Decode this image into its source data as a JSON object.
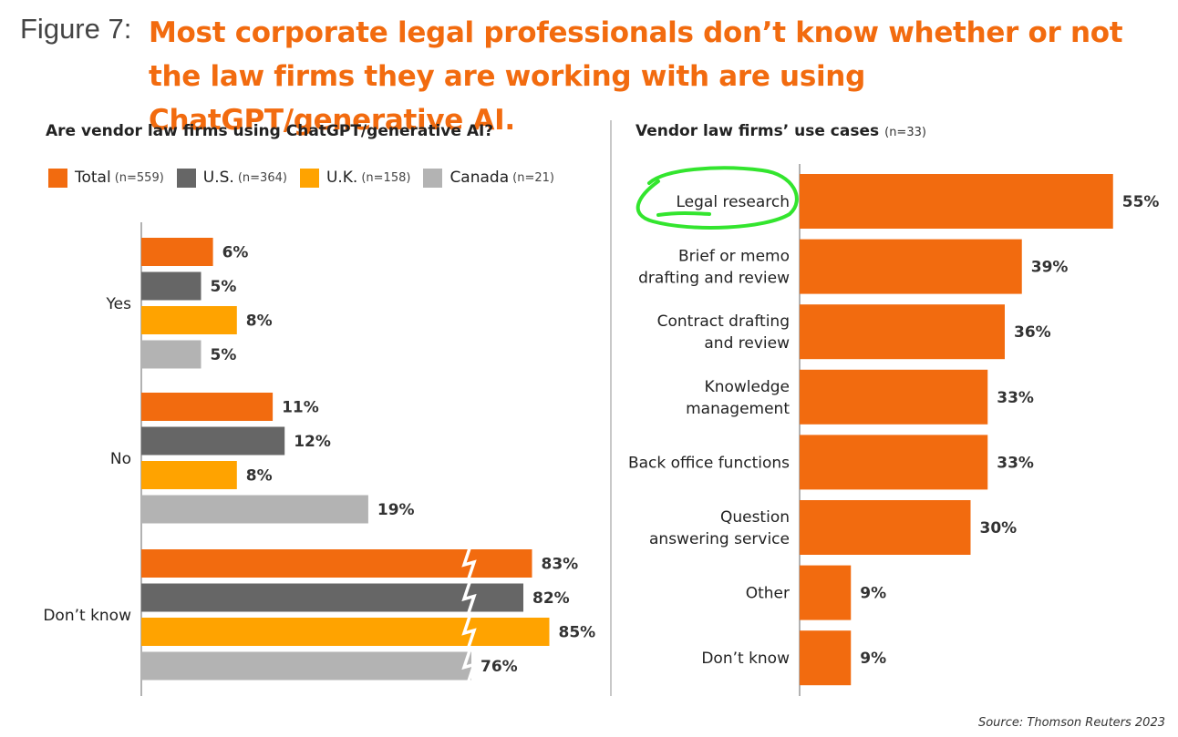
{
  "figure_label": "Figure 7:",
  "figure_title": "Most corporate legal professionals don’t know whether or not the law firms they are working with are using ChatGPT/generative AI.",
  "source": "Source: Thomson Reuters 2023",
  "colors": {
    "total": "#f26b0f",
    "us": "#666666",
    "uk": "#ffa300",
    "canada": "#b3b3b3",
    "highlight": "#33e52e"
  },
  "chart_data": [
    {
      "type": "bar",
      "orientation": "horizontal",
      "title": "Are vendor law firms using ChatGPT/generative AI?",
      "categories": [
        "Yes",
        "No",
        "Don’t know"
      ],
      "series": [
        {
          "name": "Total",
          "n": "(n=559)",
          "values": [
            6,
            11,
            83
          ],
          "labels": [
            "6%",
            "11%",
            "83%"
          ],
          "color": "#f26b0f"
        },
        {
          "name": "U.S.",
          "n": "(n=364)",
          "values": [
            5,
            12,
            82
          ],
          "labels": [
            "5%",
            "12%",
            "82%"
          ],
          "color": "#666666"
        },
        {
          "name": "U.K.",
          "n": "(n=158)",
          "values": [
            8,
            8,
            85
          ],
          "labels": [
            "8%",
            "8%",
            "85%"
          ],
          "color": "#ffa300"
        },
        {
          "name": "Canada",
          "n": "(n=21)",
          "values": [
            5,
            19,
            76
          ],
          "labels": [
            "5%",
            "19%",
            "76%"
          ],
          "color": "#b3b3b3"
        }
      ],
      "axis_break": true,
      "legend_position": "top"
    },
    {
      "type": "bar",
      "orientation": "horizontal",
      "title": "Vendor law firms’ use cases",
      "note": "(n=33)",
      "categories": [
        [
          "Legal research"
        ],
        [
          "Brief or memo",
          "drafting and review"
        ],
        [
          "Contract drafting",
          "and review"
        ],
        [
          "Knowledge",
          "management"
        ],
        [
          "Back office functions"
        ],
        [
          "Question",
          "answering service"
        ],
        [
          "Other"
        ],
        [
          "Don’t know"
        ]
      ],
      "values": [
        55,
        39,
        36,
        33,
        33,
        30,
        9,
        9
      ],
      "labels": [
        "55%",
        "39%",
        "36%",
        "33%",
        "33%",
        "30%",
        "9%",
        "9%"
      ],
      "color": "#f26b0f",
      "highlighted_category": "Legal research"
    }
  ]
}
